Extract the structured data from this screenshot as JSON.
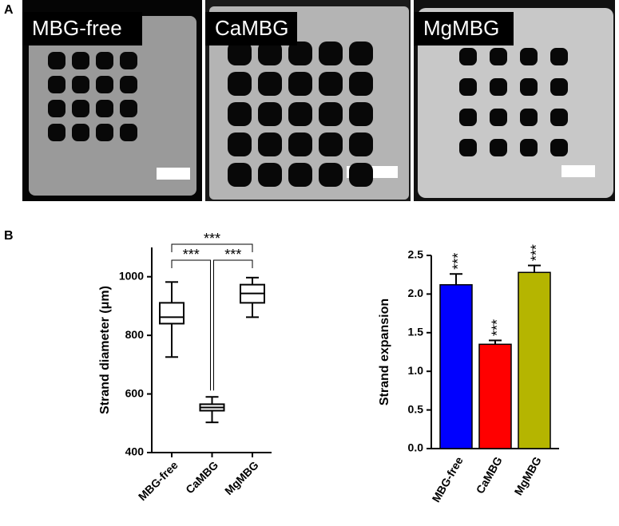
{
  "panels": {
    "a": "A",
    "b": "B"
  },
  "images": [
    {
      "label": "MBG-free"
    },
    {
      "label": "CaMBG"
    },
    {
      "label": "MgMBG"
    }
  ],
  "chart_data": [
    {
      "type": "box",
      "ylabel": "Strand diameter (μm)",
      "categories": [
        "MBG-free",
        "CaMBG",
        "MgMBG"
      ],
      "boxes": [
        {
          "min": 726,
          "q1": 840,
          "median": 862,
          "q3": 911,
          "max": 982
        },
        {
          "min": 503,
          "q1": 543,
          "median": 554,
          "q3": 565,
          "max": 590
        },
        {
          "min": 862,
          "q1": 911,
          "median": 943,
          "q3": 973,
          "max": 997
        }
      ],
      "ylim": [
        400,
        1100
      ],
      "yticks": [
        400,
        600,
        800,
        1000
      ],
      "annotations": [
        {
          "from": 0,
          "to": 1,
          "label": "***"
        },
        {
          "from": 1,
          "to": 2,
          "label": "***"
        },
        {
          "from": 0,
          "to": 2,
          "label": "***"
        }
      ]
    },
    {
      "type": "bar",
      "ylabel": "Strand expansion",
      "categories": [
        "MBG-free",
        "CaMBG",
        "MgMBG"
      ],
      "values": [
        2.12,
        1.35,
        2.28
      ],
      "errors": [
        0.14,
        0.05,
        0.09
      ],
      "colors": [
        "#0000ff",
        "#ff0000",
        "#b5b500"
      ],
      "ylim": [
        0,
        2.5
      ],
      "yticks": [
        {
          "value": 0,
          "label": "0.0"
        },
        0.5,
        {
          "value": 1,
          "label": "1.0"
        },
        1.5,
        {
          "value": 2,
          "label": "2.0"
        },
        2.5
      ],
      "annotations": [
        "***",
        "***",
        "***"
      ]
    }
  ]
}
